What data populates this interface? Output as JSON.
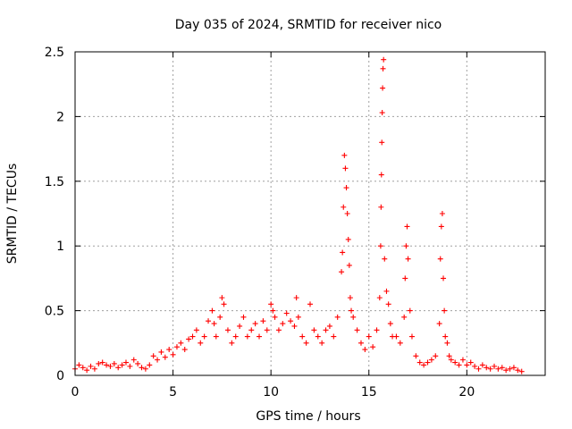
{
  "chart_data": {
    "type": "scatter",
    "title": "Day 035 of 2024, SRMTID for receiver nico",
    "xlabel": "GPS time / hours",
    "ylabel": "SRMTID / TECUs",
    "xlim": [
      0,
      24
    ],
    "ylim": [
      0,
      2.5
    ],
    "xticks": [
      0,
      5,
      10,
      15,
      20
    ],
    "xtick_labels": [
      "0",
      "5",
      "10",
      "15",
      "20"
    ],
    "yticks": [
      0,
      0.5,
      1,
      1.5,
      2,
      2.5
    ],
    "ytick_labels": [
      "0",
      "0.5",
      "1",
      "1.5",
      "2",
      "2.5"
    ],
    "grid": true,
    "marker": "+",
    "series": [
      {
        "name": "SRMTID",
        "color": "#ff0000",
        "x": [
          0.0,
          0.2,
          0.4,
          0.6,
          0.8,
          1.0,
          1.2,
          1.4,
          1.6,
          1.8,
          2.0,
          2.2,
          2.4,
          2.6,
          2.8,
          3.0,
          3.2,
          3.4,
          3.6,
          3.8,
          4.0,
          4.2,
          4.4,
          4.6,
          4.8,
          5.0,
          5.2,
          5.4,
          5.6,
          5.8,
          6.0,
          6.2,
          6.4,
          6.6,
          6.8,
          7.0,
          7.1,
          7.2,
          7.4,
          7.5,
          7.6,
          7.8,
          8.0,
          8.2,
          8.4,
          8.6,
          8.8,
          9.0,
          9.2,
          9.4,
          9.6,
          9.8,
          10.0,
          10.1,
          10.2,
          10.4,
          10.6,
          10.8,
          11.0,
          11.2,
          11.3,
          11.4,
          11.6,
          11.8,
          12.0,
          12.2,
          12.4,
          12.6,
          12.8,
          13.0,
          13.2,
          13.4,
          13.6,
          13.65,
          13.7,
          13.75,
          13.8,
          13.85,
          13.9,
          13.95,
          14.0,
          14.05,
          14.1,
          14.2,
          14.4,
          14.6,
          14.8,
          15.0,
          15.2,
          15.4,
          15.55,
          15.6,
          15.62,
          15.64,
          15.66,
          15.68,
          15.7,
          15.72,
          15.75,
          15.8,
          15.9,
          16.0,
          16.1,
          16.2,
          16.4,
          16.6,
          16.8,
          16.85,
          16.9,
          16.95,
          17.0,
          17.1,
          17.2,
          17.4,
          17.6,
          17.8,
          18.0,
          18.2,
          18.4,
          18.6,
          18.65,
          18.7,
          18.75,
          18.8,
          18.85,
          18.9,
          19.0,
          19.1,
          19.2,
          19.4,
          19.6,
          19.8,
          20.0,
          20.2,
          20.4,
          20.6,
          20.8,
          21.0,
          21.2,
          21.4,
          21.6,
          21.8,
          22.0,
          22.2,
          22.4,
          22.6,
          22.8
        ],
        "y": [
          0.05,
          0.08,
          0.06,
          0.04,
          0.07,
          0.05,
          0.09,
          0.1,
          0.08,
          0.07,
          0.09,
          0.06,
          0.08,
          0.1,
          0.07,
          0.12,
          0.09,
          0.06,
          0.05,
          0.08,
          0.15,
          0.12,
          0.18,
          0.14,
          0.2,
          0.16,
          0.22,
          0.25,
          0.2,
          0.28,
          0.3,
          0.35,
          0.25,
          0.3,
          0.42,
          0.5,
          0.4,
          0.3,
          0.45,
          0.6,
          0.55,
          0.35,
          0.25,
          0.3,
          0.38,
          0.45,
          0.3,
          0.35,
          0.4,
          0.3,
          0.42,
          0.35,
          0.55,
          0.5,
          0.45,
          0.35,
          0.4,
          0.48,
          0.42,
          0.38,
          0.6,
          0.45,
          0.3,
          0.25,
          0.55,
          0.35,
          0.3,
          0.25,
          0.35,
          0.38,
          0.3,
          0.45,
          0.8,
          0.95,
          1.3,
          1.7,
          1.6,
          1.45,
          1.25,
          1.05,
          0.85,
          0.6,
          0.5,
          0.45,
          0.35,
          0.25,
          0.2,
          0.3,
          0.22,
          0.35,
          0.6,
          1.0,
          1.3,
          1.55,
          1.8,
          2.03,
          2.22,
          2.37,
          2.44,
          0.9,
          0.65,
          0.55,
          0.4,
          0.3,
          0.3,
          0.25,
          0.45,
          0.75,
          1.0,
          1.15,
          0.9,
          0.5,
          0.3,
          0.15,
          0.1,
          0.08,
          0.1,
          0.12,
          0.15,
          0.4,
          0.9,
          1.15,
          1.25,
          0.75,
          0.5,
          0.3,
          0.25,
          0.15,
          0.12,
          0.1,
          0.08,
          0.12,
          0.08,
          0.1,
          0.07,
          0.05,
          0.08,
          0.06,
          0.05,
          0.07,
          0.05,
          0.06,
          0.04,
          0.05,
          0.06,
          0.04,
          0.03
        ]
      }
    ]
  }
}
